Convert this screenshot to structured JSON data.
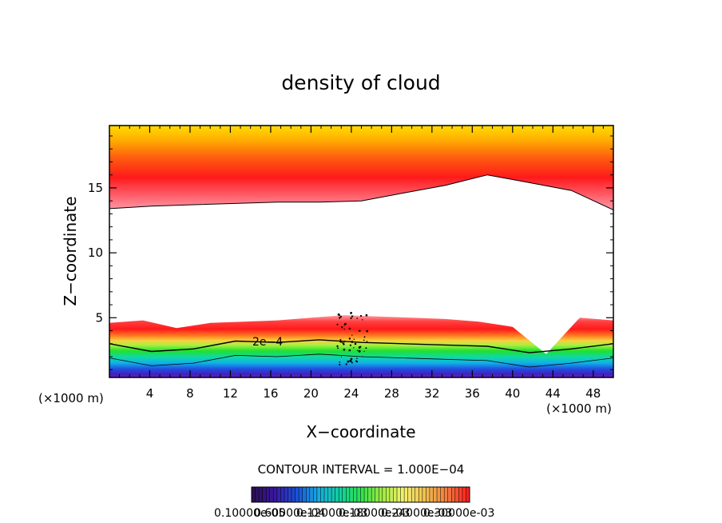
{
  "chart_data": {
    "type": "heatmap",
    "title": "density of cloud",
    "xlabel": "X−coordinate",
    "ylabel": "Z−coordinate",
    "x_unit_label": "(×1000 m)",
    "y_unit_label": "(×1000 m)",
    "xlim": [
      0,
      50
    ],
    "ylim": [
      0.4,
      19.8
    ],
    "x_ticks": [
      4,
      8,
      12,
      16,
      20,
      24,
      28,
      32,
      36,
      40,
      44,
      48
    ],
    "x_tick_labels": [
      "4",
      "8",
      "12",
      "16",
      "20",
      "24",
      "28",
      "32",
      "36",
      "40",
      "44",
      "48"
    ],
    "y_ticks": [
      5,
      10,
      15
    ],
    "y_tick_labels": [
      "5",
      "10",
      "15"
    ],
    "contour_interval_text": "CONTOUR INTERVAL = 1.000E−04",
    "contour_label": "2e−4",
    "colorbar_labels_text": "0.10000e-05",
    "colorbar_labels_overlap": [
      "0.60000e-04",
      "0.12000e-03",
      "0.18000e-03",
      "0.24000e-03",
      "0.30000e-03"
    ],
    "colormap": [
      "#2a0f55",
      "#3a18a0",
      "#1a4ed6",
      "#18a8e0",
      "#10d0a0",
      "#2ee050",
      "#a0ec40",
      "#f4f070",
      "#f0c050",
      "#f08040",
      "#ff2020"
    ],
    "regions": {
      "lower_cloud_top_km": [
        4.6,
        4.8,
        4.2,
        4.6,
        4.7,
        4.8,
        5.0,
        5.2,
        5.1,
        5.0,
        4.9,
        4.7,
        4.3,
        2.2,
        5.0,
        4.8
      ],
      "upper_cloud_base_km": [
        13.4,
        13.6,
        13.7,
        13.8,
        13.9,
        13.9,
        14.0,
        14.6,
        15.2,
        16.0,
        15.4,
        14.8,
        13.3
      ],
      "contour_2e4_z_km": [
        3.0,
        2.4,
        2.6,
        3.2,
        3.1,
        3.3,
        3.1,
        3.0,
        2.9,
        2.8,
        2.3,
        2.6,
        3.0
      ]
    }
  }
}
